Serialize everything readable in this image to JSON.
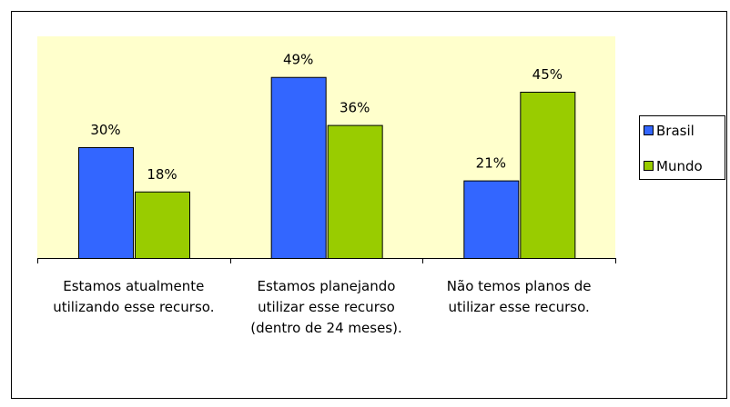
{
  "chart_data": {
    "type": "bar",
    "categories": [
      "Estamos atualmente utilizando esse recurso.",
      "Estamos planejando utilizar esse recurso (dentro de 24 meses).",
      "Não temos planos de utilizar esse recurso."
    ],
    "series": [
      {
        "name": "Brasil",
        "color": "#3366ff",
        "values": [
          30,
          49,
          21
        ],
        "value_labels": [
          "30%",
          "49%",
          "21%"
        ]
      },
      {
        "name": "Mundo",
        "color": "#99cc00",
        "values": [
          18,
          36,
          45
        ],
        "value_labels": [
          "18%",
          "36%",
          "45%"
        ]
      }
    ],
    "ylim": [
      0,
      60
    ],
    "legend": "right"
  }
}
